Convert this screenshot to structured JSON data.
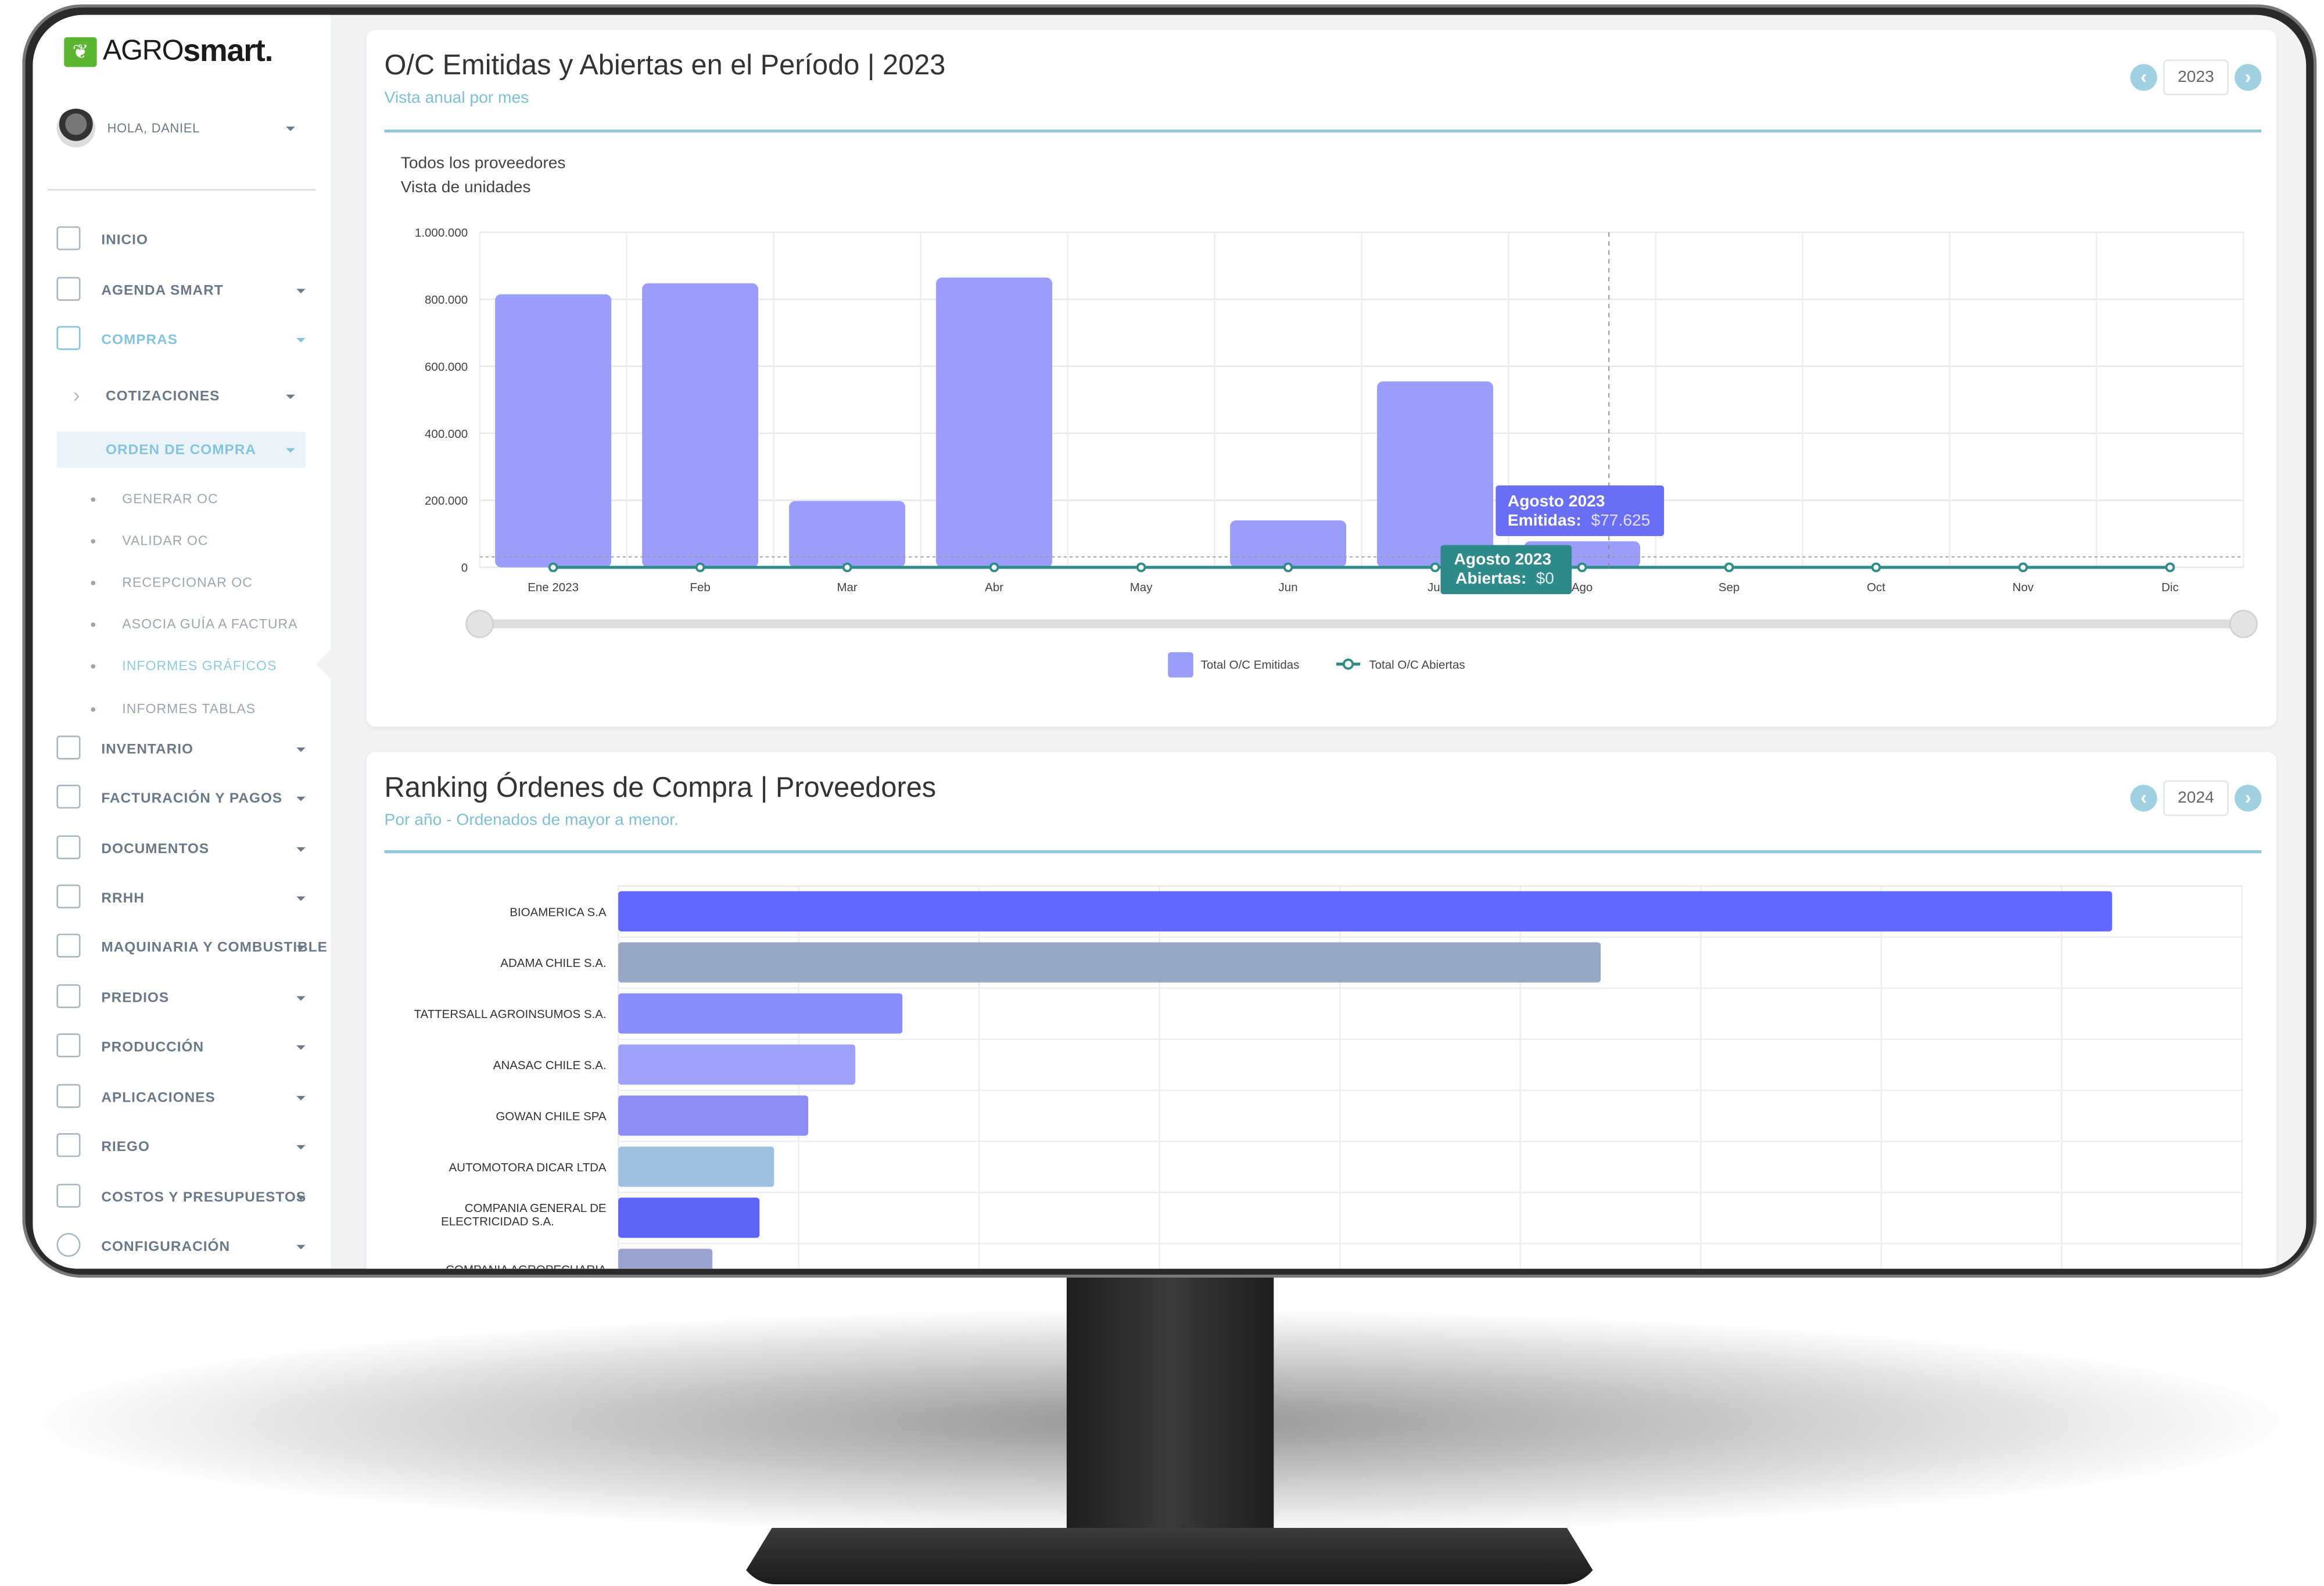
{
  "brand": {
    "logo_light": "AGRO",
    "logo_bold": "smart.",
    "logo_icon": "sprout-icon",
    "accent": "#5cb531"
  },
  "user": {
    "greeting": "HOLA, DANIEL"
  },
  "sidebar": {
    "items": [
      {
        "label": "INICIO",
        "icon": "dashboard-icon",
        "caret": false,
        "type": "main"
      },
      {
        "label": "AGENDA SMART",
        "icon": "agenda-icon",
        "caret": true,
        "type": "main"
      },
      {
        "label": "COMPRAS",
        "icon": "cart-icon",
        "caret": true,
        "type": "main",
        "active": true
      },
      {
        "label": "COTIZACIONES",
        "icon": "chevron-right-icon",
        "caret": true,
        "type": "group"
      },
      {
        "label": "ORDEN DE COMPRA",
        "icon": "",
        "caret": true,
        "type": "group",
        "active": true
      },
      {
        "label": "GENERAR OC",
        "type": "sub"
      },
      {
        "label": "VALIDAR OC",
        "type": "sub"
      },
      {
        "label": "RECEPCIONAR OC",
        "type": "sub"
      },
      {
        "label": "ASOCIA GUÍA A FACTURA",
        "type": "sub"
      },
      {
        "label": "INFORMES GRÁFICOS",
        "type": "sub",
        "active": true
      },
      {
        "label": "INFORMES TABLAS",
        "type": "sub"
      },
      {
        "label": "INVENTARIO",
        "icon": "tag-icon",
        "caret": true,
        "type": "main"
      },
      {
        "label": "FACTURACIÓN Y PAGOS",
        "icon": "billing-icon",
        "caret": true,
        "type": "main"
      },
      {
        "label": "DOCUMENTOS",
        "icon": "document-icon",
        "caret": true,
        "type": "main"
      },
      {
        "label": "RRHH",
        "icon": "id-card-icon",
        "caret": true,
        "type": "main"
      },
      {
        "label": "MAQUINARIA Y COMBUSTIBLE",
        "icon": "truck-icon",
        "caret": true,
        "type": "main"
      },
      {
        "label": "PREDIOS",
        "icon": "landscape-icon",
        "caret": true,
        "type": "main"
      },
      {
        "label": "PRODUCCIÓN",
        "icon": "nodes-icon",
        "caret": true,
        "type": "main"
      },
      {
        "label": "APLICACIONES",
        "icon": "calendar-icon",
        "caret": true,
        "type": "main"
      },
      {
        "label": "RIEGO",
        "icon": "sunrise-icon",
        "caret": true,
        "type": "main"
      },
      {
        "label": "COSTOS Y PRESUPUESTOS",
        "icon": "ruler-pencil-icon",
        "caret": true,
        "type": "main"
      },
      {
        "label": "CONFIGURACIÓN",
        "icon": "gear-icon",
        "caret": true,
        "type": "main"
      }
    ]
  },
  "card1": {
    "title": "O/C Emitidas y Abiertas en el Período | 2023",
    "subtitle": "Vista anual por mes",
    "year": "2023",
    "filter_suppliers": "Todos los proveedores",
    "filter_view": "Vista de unidades",
    "tooltip_emitidas": {
      "title": "Agosto 2023",
      "label": "Emitidas:",
      "value": "$77.625"
    },
    "tooltip_abiertas": {
      "title": "Agosto 2023",
      "label": "Abiertas:",
      "value": "$0"
    }
  },
  "card2": {
    "title": "Ranking Órdenes de Compra | Proveedores",
    "subtitle": "Por año - Ordenados de mayor a menor.",
    "year": "2024"
  },
  "colors": {
    "emitidas": "#9b9dfb",
    "abiertas": "#2e8b88",
    "tooltip_emitidas": "#6a6ef5",
    "tooltip_abiertas": "#2f8a8a",
    "header_rule": "#90c8d8"
  },
  "chart_data": [
    {
      "type": "bar",
      "categories": [
        "Ene 2023",
        "Feb",
        "Mar",
        "Abr",
        "May",
        "Jun",
        "Jul",
        "Ago",
        "Sep",
        "Oct",
        "Nov",
        "Dic"
      ],
      "series": [
        {
          "name": "Total O/C Emitidas",
          "type": "bar",
          "values": [
            815000,
            848000,
            198000,
            865000,
            0,
            140000,
            555000,
            77625,
            0,
            0,
            0,
            0
          ]
        },
        {
          "name": "Total O/C Abiertas",
          "type": "line",
          "values": [
            0,
            0,
            0,
            0,
            0,
            0,
            0,
            0,
            0,
            0,
            0,
            0
          ]
        }
      ],
      "ylim": [
        0,
        1000000
      ],
      "yticks": [
        "0",
        "200.000",
        "400.000",
        "600.000",
        "800.000",
        "1.000.000"
      ],
      "grid": true,
      "legend": "bottom"
    },
    {
      "type": "bar",
      "orientation": "horizontal",
      "categories": [
        "BIOAMERICA S.A",
        "ADAMA CHILE S.A.",
        "TATTERSALL AGROINSUMOS S.A.",
        "ANASAC CHILE S.A.",
        "GOWAN CHILE SPA",
        "AUTOMOTORA DICAR LTDA",
        "COMPANIA GENERAL DE ELECTRICIDAD S.A.",
        "COMPANIA AGROPECUARIA"
      ],
      "values_relative_pct": [
        92,
        60.5,
        17.5,
        14.6,
        11.7,
        9.6,
        8.7,
        5.8
      ],
      "colors": [
        "#6366ff",
        "#98a8c4",
        "#8a8cfb",
        "#9fa1fb",
        "#8c8ef5",
        "#9fc0e0",
        "#5f62f7",
        "#9aa3cf"
      ],
      "grid": true
    }
  ]
}
